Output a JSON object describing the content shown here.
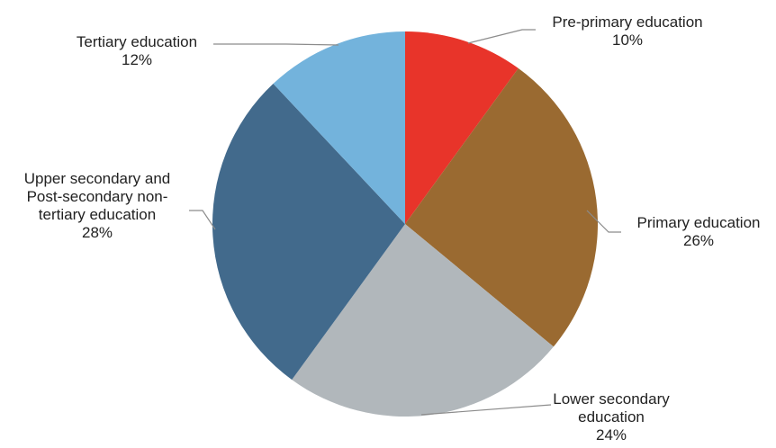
{
  "chart_data": {
    "type": "pie",
    "start_angle_deg": 0,
    "direction": "clockwise",
    "slices": [
      {
        "label": [
          "Pre-primary education"
        ],
        "value": 10,
        "value_text": "10%",
        "color": "#e8342a"
      },
      {
        "label": [
          "Primary education"
        ],
        "value": 26,
        "value_text": "26%",
        "color": "#9a6a31"
      },
      {
        "label": [
          "Lower secondary",
          "education"
        ],
        "value": 24,
        "value_text": "24%",
        "color": "#b1b7bb"
      },
      {
        "label": [
          "Upper secondary and",
          "Post-secondary non-",
          "tertiary education"
        ],
        "value": 28,
        "value_text": "28%",
        "color": "#426a8c"
      },
      {
        "label": [
          "Tertiary education"
        ],
        "value": 12,
        "value_text": "12%",
        "color": "#73b3dc"
      }
    ],
    "legend": "none",
    "title": ""
  }
}
